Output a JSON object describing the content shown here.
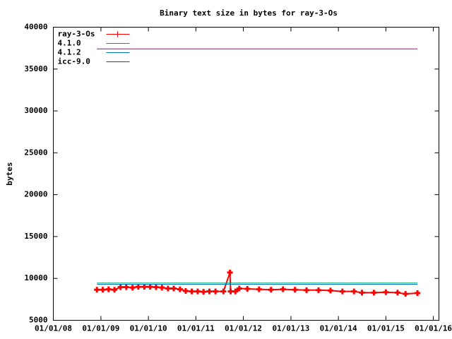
{
  "chart_data": {
    "type": "line",
    "title": "Binary text size in bytes for ray-3-Os",
    "y_label": "bytes",
    "legend": "top-left",
    "xlim": [
      "2008-01-01",
      "2016-02-13"
    ],
    "xticks": [
      {
        "value": "2008-01-01",
        "label": "01/01/08"
      },
      {
        "value": "2009-01-01",
        "label": "01/01/09"
      },
      {
        "value": "2010-01-01",
        "label": "01/01/10"
      },
      {
        "value": "2011-01-01",
        "label": "01/01/11"
      },
      {
        "value": "2012-01-01",
        "label": "01/01/12"
      },
      {
        "value": "2013-01-01",
        "label": "01/01/13"
      },
      {
        "value": "2014-01-01",
        "label": "01/01/14"
      },
      {
        "value": "2015-01-01",
        "label": "01/01/15"
      },
      {
        "value": "2016-01-01",
        "label": "01/01/16"
      }
    ],
    "ylim": [
      5000,
      40000
    ],
    "yticks": [
      5000,
      10000,
      15000,
      20000,
      25000,
      30000,
      35000,
      40000
    ],
    "series": [
      {
        "name": "ray-3-Os",
        "color": "#ff0000",
        "markers": true,
        "x": [
          "2008-12-01",
          "2009-01-15",
          "2009-03-01",
          "2009-04-15",
          "2009-06-01",
          "2009-07-15",
          "2009-09-01",
          "2009-10-15",
          "2009-12-01",
          "2010-01-15",
          "2010-03-01",
          "2010-04-15",
          "2010-06-01",
          "2010-07-15",
          "2010-09-01",
          "2010-10-15",
          "2010-12-01",
          "2011-01-15",
          "2011-03-01",
          "2011-04-15",
          "2011-06-01",
          "2011-08-01",
          "2011-09-20",
          "2011-09-25",
          "2011-11-01",
          "2011-12-01",
          "2012-02-01",
          "2012-05-01",
          "2012-08-01",
          "2012-11-01",
          "2013-02-01",
          "2013-05-01",
          "2013-08-01",
          "2013-11-01",
          "2014-02-01",
          "2014-05-01",
          "2014-07-01",
          "2014-10-01",
          "2015-01-01",
          "2015-04-01",
          "2015-06-01",
          "2015-09-01"
        ],
        "values": [
          8650,
          8650,
          8700,
          8650,
          8950,
          8950,
          8900,
          9000,
          9000,
          9000,
          8950,
          8900,
          8800,
          8800,
          8700,
          8500,
          8450,
          8450,
          8400,
          8450,
          8450,
          8450,
          10700,
          8450,
          8450,
          8800,
          8750,
          8700,
          8650,
          8700,
          8650,
          8600,
          8600,
          8550,
          8450,
          8450,
          8300,
          8300,
          8350,
          8300,
          8150,
          8250
        ]
      },
      {
        "name": "4.1.0",
        "color": "#00a060",
        "x": [
          "2008-12-01",
          "2015-09-01"
        ],
        "values": [
          9450,
          9450
        ]
      },
      {
        "name": "4.1.2",
        "color": "#0070d0",
        "x": [
          "2008-12-01",
          "2015-09-01"
        ],
        "values": [
          9300,
          9300
        ]
      },
      {
        "name": "icc-9.0",
        "color": "#a000a0",
        "x": [
          "2008-12-01",
          "2015-09-01"
        ],
        "values": [
          37400,
          37400
        ]
      }
    ]
  }
}
